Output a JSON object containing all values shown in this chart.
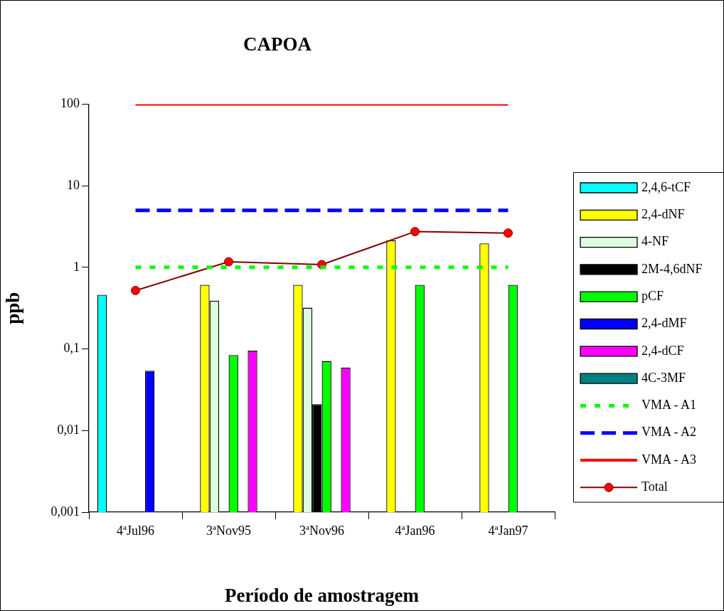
{
  "chart_data": {
    "type": "bar",
    "title": "CAPOA",
    "xlabel": "Período de amostragem",
    "ylabel": "ppb",
    "categories": [
      "4ªJul96",
      "3ªNov95",
      "3ªNov96",
      "4ªJan96",
      "4ªJan97"
    ],
    "series": [
      {
        "name": "2,4,6-tCF",
        "color": "#00ffff",
        "values": [
          0.46,
          null,
          null,
          null,
          null
        ]
      },
      {
        "name": "2,4-dNF",
        "color": "#ffff00",
        "values": [
          null,
          0.61,
          0.61,
          2.14,
          1.96
        ]
      },
      {
        "name": "4-NF",
        "color": "#ddfcdd",
        "values": [
          null,
          0.39,
          0.32,
          null,
          null
        ]
      },
      {
        "name": "2M-4,6dNF",
        "color": "#000000",
        "values": [
          null,
          null,
          0.021,
          null,
          null
        ]
      },
      {
        "name": "pCF",
        "color": "#00ff00",
        "values": [
          null,
          0.084,
          0.071,
          0.61,
          0.61
        ]
      },
      {
        "name": "2,4-dMF",
        "color": "#0000ff",
        "values": [
          0.054,
          null,
          null,
          null,
          null
        ]
      },
      {
        "name": "2,4-dCF",
        "color": "#ff00ff",
        "values": [
          null,
          0.095,
          0.059,
          null,
          null
        ]
      },
      {
        "name": "4C-3MF",
        "color": "#008080",
        "values": [
          null,
          null,
          null,
          null,
          null
        ]
      },
      {
        "name": "VMA - A1",
        "type": "line",
        "color": "#00ff00",
        "line_style": "dotted",
        "marker": "none",
        "values": [
          1,
          1,
          1,
          1,
          1
        ]
      },
      {
        "name": "VMA - A2",
        "type": "line",
        "color": "#0000ff",
        "line_style": "dashed",
        "marker": "none",
        "values": [
          5,
          5,
          5,
          5,
          5
        ]
      },
      {
        "name": "VMA - A3",
        "type": "line",
        "color": "#ff0000",
        "line_style": "solid",
        "marker": "none",
        "values": [
          100,
          100,
          100,
          100,
          100
        ]
      },
      {
        "name": "Total",
        "type": "line",
        "color": "#800000",
        "line_style": "solid",
        "marker": "circle",
        "values": [
          0.52,
          1.17,
          1.08,
          2.74,
          2.63
        ]
      }
    ],
    "log": true,
    "ylim": [
      0.001,
      100
    ],
    "yticks": [
      {
        "value": 0.001,
        "label": "0,001"
      },
      {
        "value": 0.01,
        "label": "0,01"
      },
      {
        "value": 0.1,
        "label": "0,1"
      },
      {
        "value": 1,
        "label": "1"
      },
      {
        "value": 10,
        "label": "10"
      },
      {
        "value": 100,
        "label": "100"
      }
    ],
    "grid": false,
    "legend": "right"
  }
}
